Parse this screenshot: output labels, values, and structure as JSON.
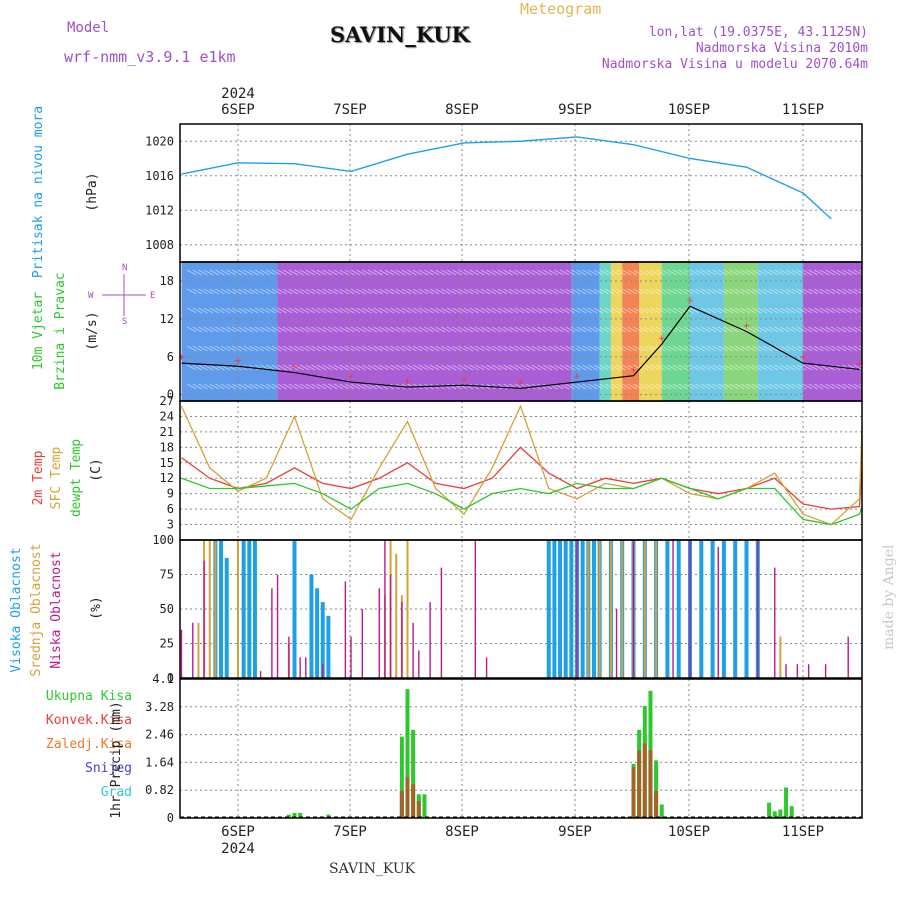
{
  "header": {
    "model_label": "Model",
    "model_name": "wrf-nmm_v3.9.1  e1km",
    "station": "SAVIN_KUK",
    "meteogram": "Meteogram",
    "lonlat": "lon,lat (19.0375E, 43.1125N)",
    "elevation": "Nadmorska Visina 2010m",
    "model_elevation": "Nadmorska Visina u modelu 2070.64m",
    "footer_station": "SAVIN_KUK",
    "credit": "made by Angel"
  },
  "colors": {
    "pressure": "#1ea0e6",
    "temp2m": "#e8413c",
    "sfc_temp": "#d7a13a",
    "dewpt": "#2ec82e",
    "high_cloud": "#1ea0e6",
    "mid_cloud": "#d7a13a",
    "low_cloud": "#c0188c",
    "total_precip": "#2ec82e",
    "conv_precip": "#e8413c",
    "frozen": "#f07828",
    "snow": "#4646d2",
    "hail": "#2ec8c8",
    "wind_speed_line": "#000000",
    "gust": "#ff3030",
    "label_purple": "#a050c8",
    "label_orange": "#e6b450"
  },
  "chart_data": [
    {
      "type": "line",
      "panel": "pressure",
      "ylabel": [
        "Pritisak na nivou mora",
        "(hPa)"
      ],
      "yticks": [
        1008,
        1012,
        1016,
        1020
      ],
      "ylim": [
        1006,
        1022
      ],
      "x_top_labels": [
        "6SEP",
        "7SEP",
        "8SEP",
        "9SEP",
        "10SEP",
        "11SEP"
      ],
      "x_top_year": "2024",
      "x_days": [
        0.0,
        0.5,
        1.0,
        1.5,
        2.0,
        2.5,
        3.0,
        3.5,
        4.0,
        4.5,
        5.0,
        5.5,
        5.75
      ],
      "series": [
        {
          "values": [
            1016.2,
            1017.5,
            1017.4,
            1016.5,
            1018.5,
            1019.8,
            1020.0,
            1020.5,
            1019.6,
            1018.0,
            1017.0,
            1014.0,
            1011.0
          ]
        }
      ],
      "grid": true
    },
    {
      "type": "line",
      "panel": "wind",
      "ylabel": [
        "10m Vjetar",
        "Brzina i Pravac",
        "(m/s)"
      ],
      "compass": [
        "N",
        "S",
        "W",
        "E"
      ],
      "yticks": [
        0,
        6,
        12,
        18
      ],
      "ylim": [
        -1,
        21
      ],
      "series": [
        {
          "values": [
            5.0,
            4.5,
            3.5,
            2.0,
            1.2,
            1.5,
            1.0,
            2.0,
            3.0,
            8.0,
            14.0,
            10.0,
            5.0,
            4.0
          ]
        }
      ],
      "x_days": [
        -0.5,
        0.0,
        0.5,
        1.0,
        1.5,
        2.0,
        2.5,
        3.0,
        3.5,
        3.75,
        4.0,
        4.5,
        5.0,
        5.5
      ],
      "grid": true
    },
    {
      "type": "line",
      "panel": "temperature",
      "ylabel": [
        "2m Temp",
        "SFC Temp",
        "dewpt Temp",
        "(C)"
      ],
      "yticks": [
        3,
        6,
        9,
        12,
        15,
        18,
        21,
        24,
        27
      ],
      "ylim": [
        0,
        27
      ],
      "x_days": [
        -0.5,
        -0.25,
        0.0,
        0.25,
        0.5,
        0.75,
        1.0,
        1.25,
        1.5,
        1.75,
        2.0,
        2.25,
        2.5,
        2.75,
        3.0,
        3.25,
        3.5,
        3.75,
        4.0,
        4.25,
        4.5,
        4.75,
        5.0,
        5.25,
        5.5,
        5.75
      ],
      "series": [
        {
          "name": "2m Temp",
          "values": [
            16.0,
            12.0,
            10.0,
            11.0,
            14.0,
            11.0,
            10.0,
            12.0,
            15.0,
            11.0,
            10.0,
            12.0,
            18.0,
            13.0,
            10.0,
            12.0,
            11.0,
            12.0,
            10.0,
            9.0,
            10.0,
            12.0,
            7.0,
            6.0,
            6.5,
            14.0
          ]
        },
        {
          "name": "SFC Temp",
          "values": [
            26.0,
            14.0,
            9.5,
            12.0,
            24.0,
            8.0,
            4.0,
            14.0,
            23.0,
            10.0,
            5.0,
            14.0,
            26.0,
            10.0,
            8.0,
            11.0,
            10.0,
            12.0,
            9.0,
            8.0,
            10.0,
            13.0,
            5.0,
            3.0,
            8.0,
            22.0
          ]
        },
        {
          "name": "dewpt Temp",
          "values": [
            12.0,
            10.0,
            10.0,
            10.5,
            11.0,
            9.0,
            6.0,
            10.0,
            11.0,
            9.0,
            6.0,
            9.0,
            10.0,
            9.0,
            11.0,
            10.0,
            10.0,
            12.0,
            10.0,
            8.0,
            10.0,
            10.0,
            4.0,
            3.0,
            5.0,
            6.5
          ]
        }
      ],
      "grid": true
    },
    {
      "type": "bar",
      "panel": "clouds",
      "ylabel": [
        "Visoka Oblacnost",
        "Srednja Oblacnost",
        "Niska Oblacnost",
        "(%)"
      ],
      "yticks": [
        0,
        25,
        50,
        75,
        100
      ],
      "ylim": [
        0,
        100
      ],
      "series": [
        {
          "name": "Visoka Oblacnost",
          "x_days": [
            -0.2,
            -0.15,
            -0.1,
            0.05,
            0.1,
            0.15,
            0.5,
            0.65,
            0.7,
            0.75,
            0.8,
            2.75,
            2.8,
            2.85,
            2.9,
            2.95,
            3.0,
            3.05,
            3.1,
            3.15,
            3.2,
            3.3,
            3.4,
            3.5,
            3.6,
            3.7,
            3.8,
            3.9,
            4.0,
            4.1,
            4.2,
            4.3,
            4.4,
            4.5,
            4.6
          ],
          "values": [
            100,
            100,
            87,
            100,
            100,
            100,
            100,
            75,
            65,
            55,
            45,
            100,
            100,
            100,
            100,
            100,
            100,
            100,
            100,
            100,
            100,
            100,
            100,
            100,
            100,
            100,
            100,
            100,
            100,
            100,
            100,
            100,
            100,
            100,
            100
          ]
        },
        {
          "name": "Srednja Oblacnost",
          "x_days": [
            -0.35,
            -0.3,
            -0.25,
            -0.2,
            0.0,
            0.45,
            1.3,
            1.35,
            1.4,
            1.45,
            1.5,
            3.1,
            3.2,
            3.3,
            3.4,
            3.5,
            3.6,
            3.7,
            4.8
          ],
          "values": [
            40,
            100,
            100,
            100,
            100,
            25,
            60,
            100,
            90,
            60,
            100,
            100,
            100,
            100,
            100,
            100,
            100,
            100,
            30
          ]
        },
        {
          "name": "Niska Oblacnost",
          "x_days": [
            -0.5,
            -0.4,
            -0.3,
            0.2,
            0.3,
            0.35,
            0.45,
            0.55,
            0.6,
            0.75,
            0.95,
            1.0,
            1.1,
            1.25,
            1.3,
            1.35,
            1.45,
            1.55,
            1.6,
            1.7,
            1.8,
            2.1,
            2.2,
            3.0,
            3.35,
            3.5,
            3.85,
            4.0,
            4.25,
            4.6,
            4.75,
            4.85,
            4.95,
            5.05,
            5.2,
            5.4
          ],
          "values": [
            35,
            40,
            85,
            5,
            65,
            75,
            30,
            15,
            15,
            10,
            70,
            30,
            50,
            65,
            100,
            75,
            55,
            40,
            20,
            55,
            80,
            100,
            15,
            100,
            50,
            100,
            100,
            100,
            95,
            100,
            80,
            10,
            10,
            10,
            10,
            30
          ]
        }
      ],
      "grid": true
    },
    {
      "type": "bar",
      "panel": "precipitation",
      "ylabel": [
        "Ukupna Kisa",
        "Konvek.Kisa",
        "Zaledj.Kisa",
        "Snijeg",
        "Grad",
        "1hr Precip (mm)"
      ],
      "yticks": [
        0,
        0.82,
        1.64,
        2.46,
        3.28,
        4.1
      ],
      "ylim": [
        0,
        4.1
      ],
      "x_bottom_labels": [
        "6SEP",
        "7SEP",
        "8SEP",
        "9SEP",
        "10SEP",
        "11SEP"
      ],
      "x_bottom_year": "2024",
      "series": [
        {
          "name": "Ukupna Kisa",
          "x_days": [
            0.45,
            0.5,
            0.55,
            0.8,
            1.45,
            1.5,
            1.55,
            1.6,
            1.65,
            3.5,
            3.55,
            3.6,
            3.65,
            3.7,
            3.75,
            4.7,
            4.75,
            4.8,
            4.85,
            4.9
          ],
          "values": [
            0.1,
            0.15,
            0.15,
            0.1,
            2.4,
            3.8,
            2.6,
            0.7,
            0.7,
            1.6,
            2.6,
            3.3,
            3.75,
            1.7,
            0.4,
            0.45,
            0.2,
            0.25,
            0.9,
            0.35
          ]
        },
        {
          "name": "Konvek.Kisa",
          "x_days": [
            1.45,
            1.5,
            1.55,
            1.6,
            3.5,
            3.55,
            3.6,
            3.65,
            3.7
          ],
          "values": [
            0.8,
            1.2,
            1.0,
            0.5,
            1.5,
            2.0,
            2.2,
            2.0,
            0.8
          ]
        }
      ],
      "grid": true
    }
  ]
}
